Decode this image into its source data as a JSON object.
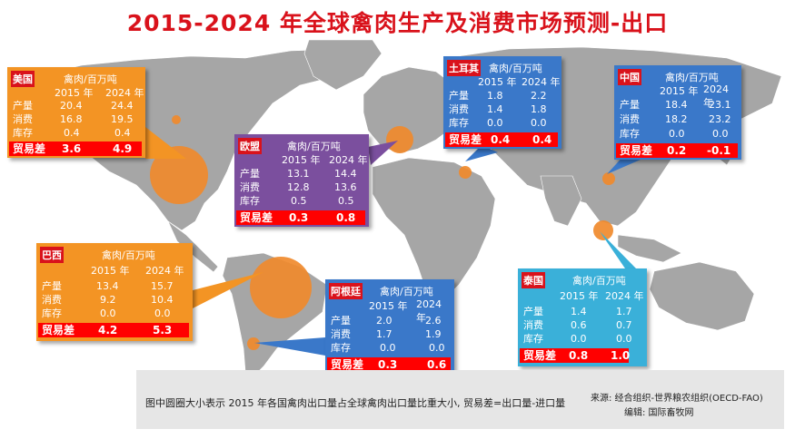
{
  "title": "2015-2024 年全球禽肉生产及消费市场预测-出口",
  "unit": "禽肉/百万吨",
  "years": [
    "2015 年",
    "2024 年"
  ],
  "rows": [
    "产量",
    "消费",
    "库存"
  ],
  "trade_label": "贸易差",
  "countries": {
    "usa": {
      "name": "美国",
      "color": "#f39424",
      "production": [
        "20.4",
        "24.4"
      ],
      "consumption": [
        "16.8",
        "19.5"
      ],
      "stock": [
        "0.4",
        "0.4"
      ],
      "trade": [
        "3.6",
        "4.9"
      ]
    },
    "eu": {
      "name": "欧盟",
      "color": "#7b4f9e",
      "production": [
        "13.1",
        "14.4"
      ],
      "consumption": [
        "12.8",
        "13.6"
      ],
      "stock": [
        "0.5",
        "0.5"
      ],
      "trade": [
        "0.3",
        "0.8"
      ]
    },
    "turkey": {
      "name": "土耳其",
      "color": "#3a78c9",
      "production": [
        "1.8",
        "2.2"
      ],
      "consumption": [
        "1.4",
        "1.8"
      ],
      "stock": [
        "0.0",
        "0.0"
      ],
      "trade": [
        "0.4",
        "0.4"
      ]
    },
    "china": {
      "name": "中国",
      "color": "#3a78c9",
      "production": [
        "18.4",
        "23.1"
      ],
      "consumption": [
        "18.2",
        "23.2"
      ],
      "stock": [
        "0.0",
        "0.0"
      ],
      "trade": [
        "0.2",
        "-0.1"
      ]
    },
    "brazil": {
      "name": "巴西",
      "color": "#f39424",
      "production": [
        "13.4",
        "15.7"
      ],
      "consumption": [
        "9.2",
        "10.4"
      ],
      "stock": [
        "0.0",
        "0.0"
      ],
      "trade": [
        "4.2",
        "5.3"
      ]
    },
    "argentina": {
      "name": "阿根廷",
      "color": "#3a78c9",
      "production": [
        "2.0",
        "2.6"
      ],
      "consumption": [
        "1.7",
        "1.9"
      ],
      "stock": [
        "0.0",
        "0.0"
      ],
      "trade": [
        "0.3",
        "0.6"
      ]
    },
    "thailand": {
      "name": "泰国",
      "color": "#3ab0d9",
      "production": [
        "1.4",
        "1.7"
      ],
      "consumption": [
        "0.6",
        "0.7"
      ],
      "stock": [
        "0.0",
        "0.0"
      ],
      "trade": [
        "0.8",
        "1.0"
      ]
    }
  },
  "footer": {
    "note": "图中圆圈大小表示 2015 年各国禽肉出口量占全球禽肉出口量比重大小, 贸易差=出口量-进口量",
    "source": "来源: 经合组织-世界粮农组织(OECD-FAO)",
    "editor": "编辑: 国际畜牧网"
  }
}
